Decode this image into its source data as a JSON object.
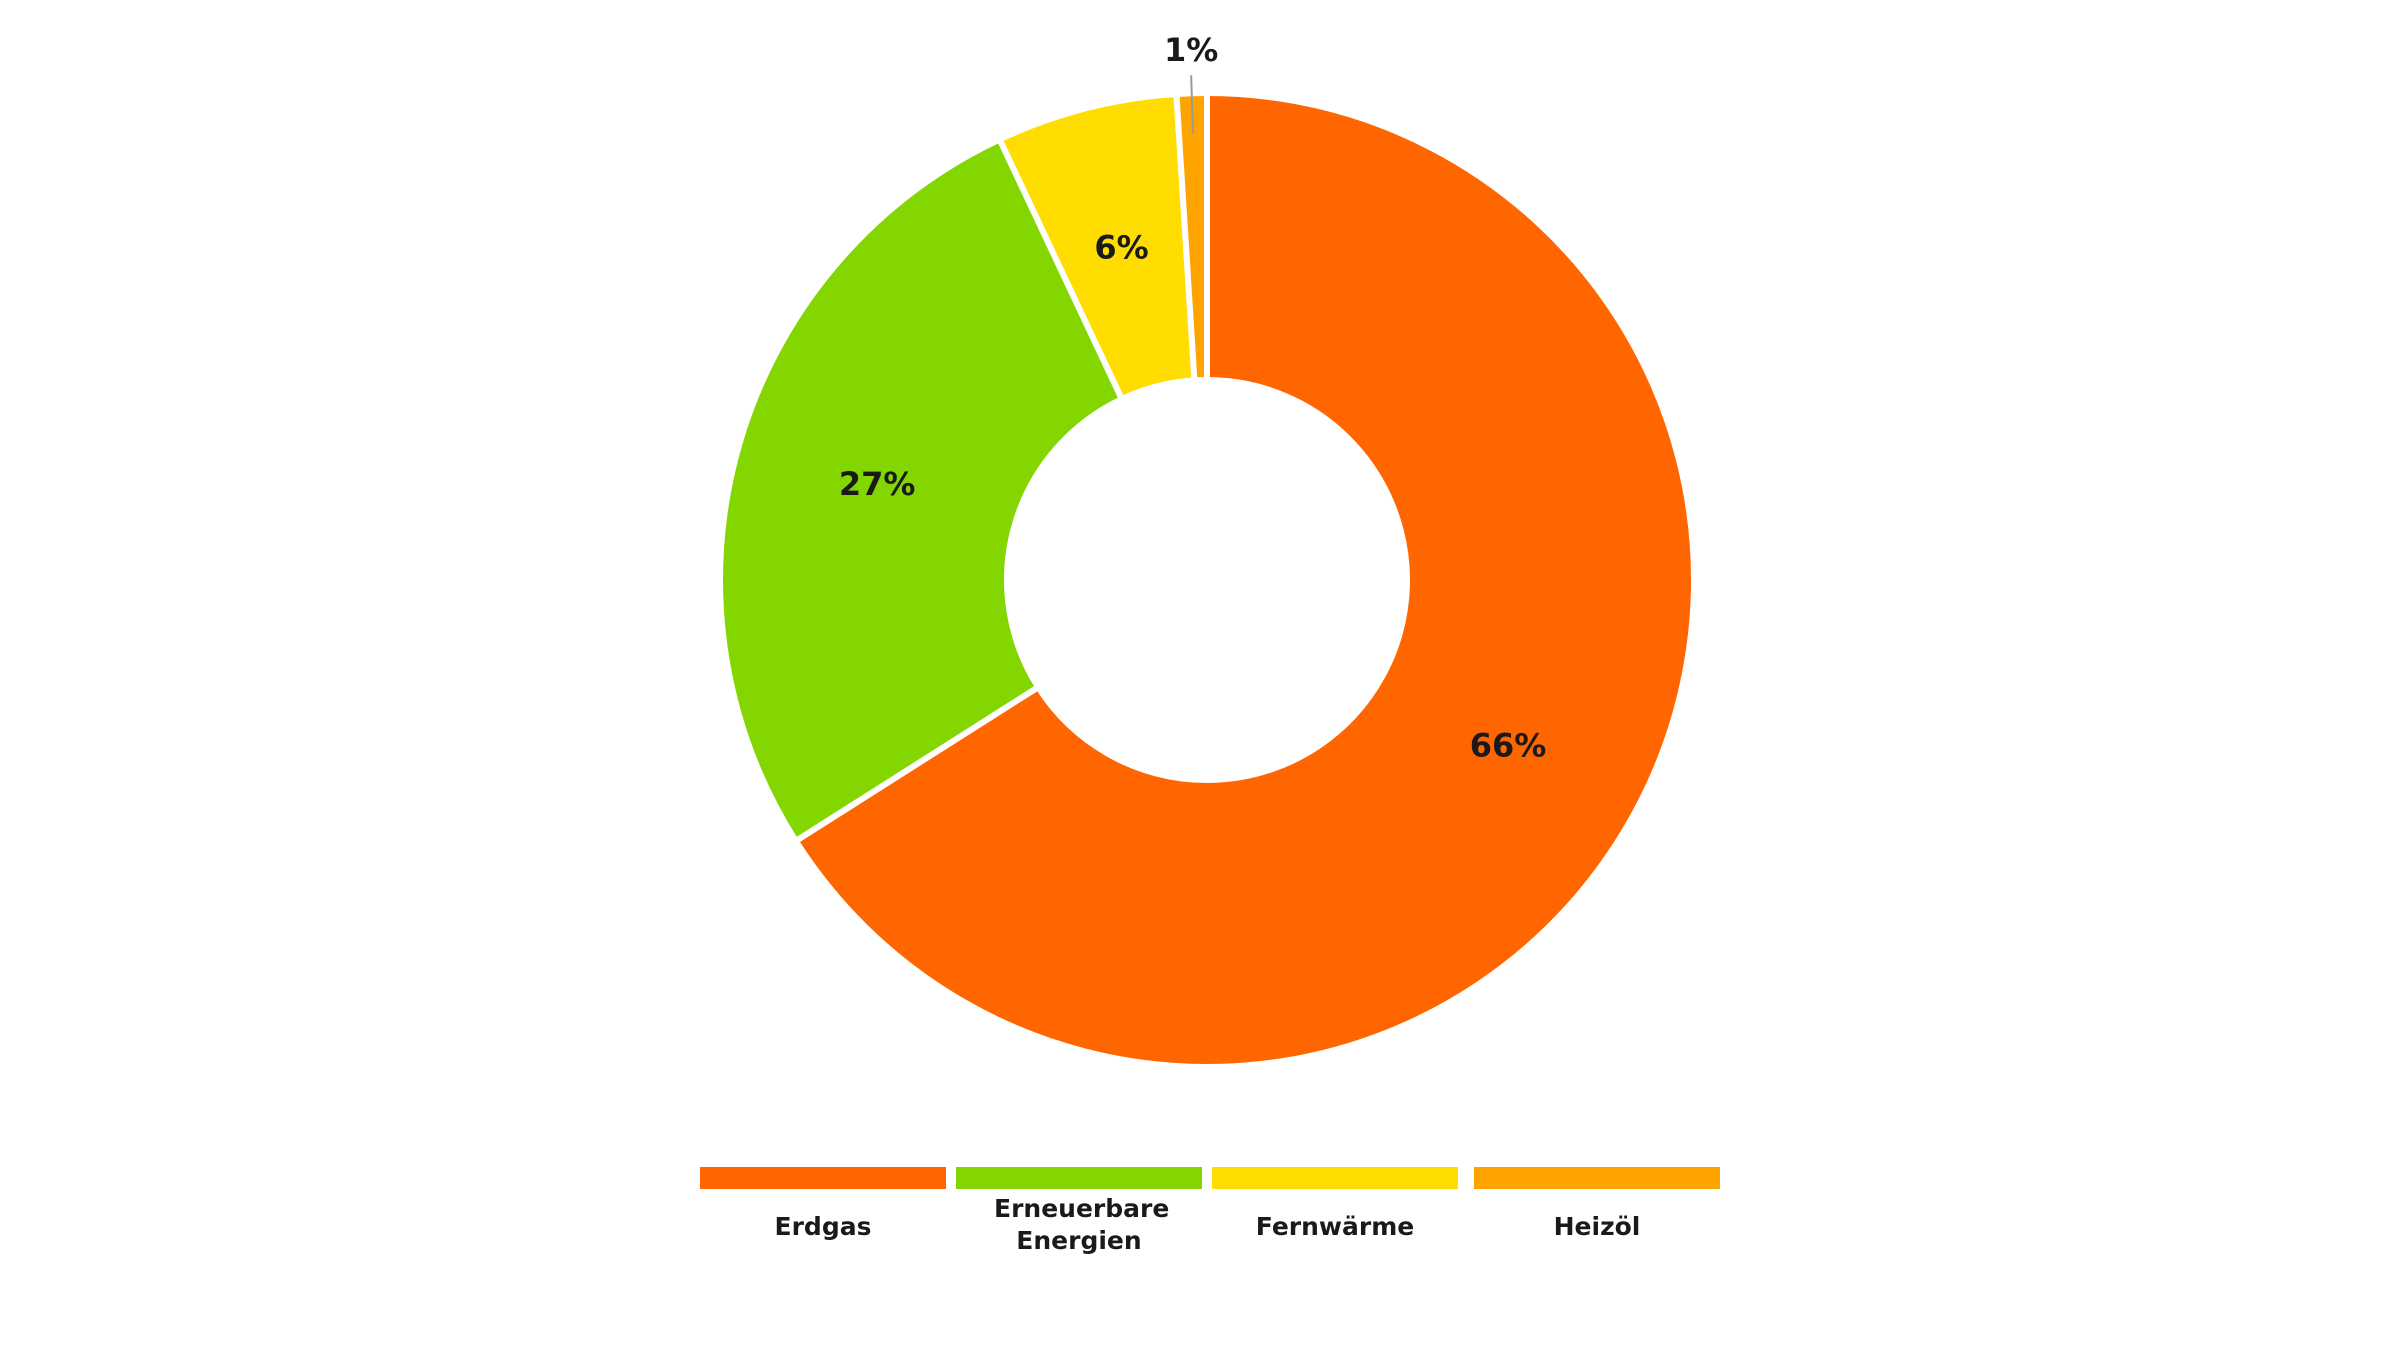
{
  "chart_data": {
    "type": "pie",
    "variant": "donut",
    "title": "",
    "categories": [
      "Erdgas",
      "Erneuerbare Energien",
      "Fernwärme",
      "Heizöl"
    ],
    "values": [
      66,
      27,
      6,
      1
    ],
    "labels": [
      "66%",
      "27%",
      "6%",
      "1%"
    ],
    "colors": [
      "#ff6600",
      "#84d600",
      "#ffdd00",
      "#ffa300"
    ],
    "legend": {
      "position": "bottom",
      "items": [
        {
          "label": "Erdgas",
          "color": "#ff6600"
        },
        {
          "label": "Erneuerbare Energien",
          "color": "#84d600"
        },
        {
          "label": "Fernwärme",
          "color": "#ffdd00"
        },
        {
          "label": "Heizöl",
          "color": "#ffa300"
        }
      ]
    }
  }
}
